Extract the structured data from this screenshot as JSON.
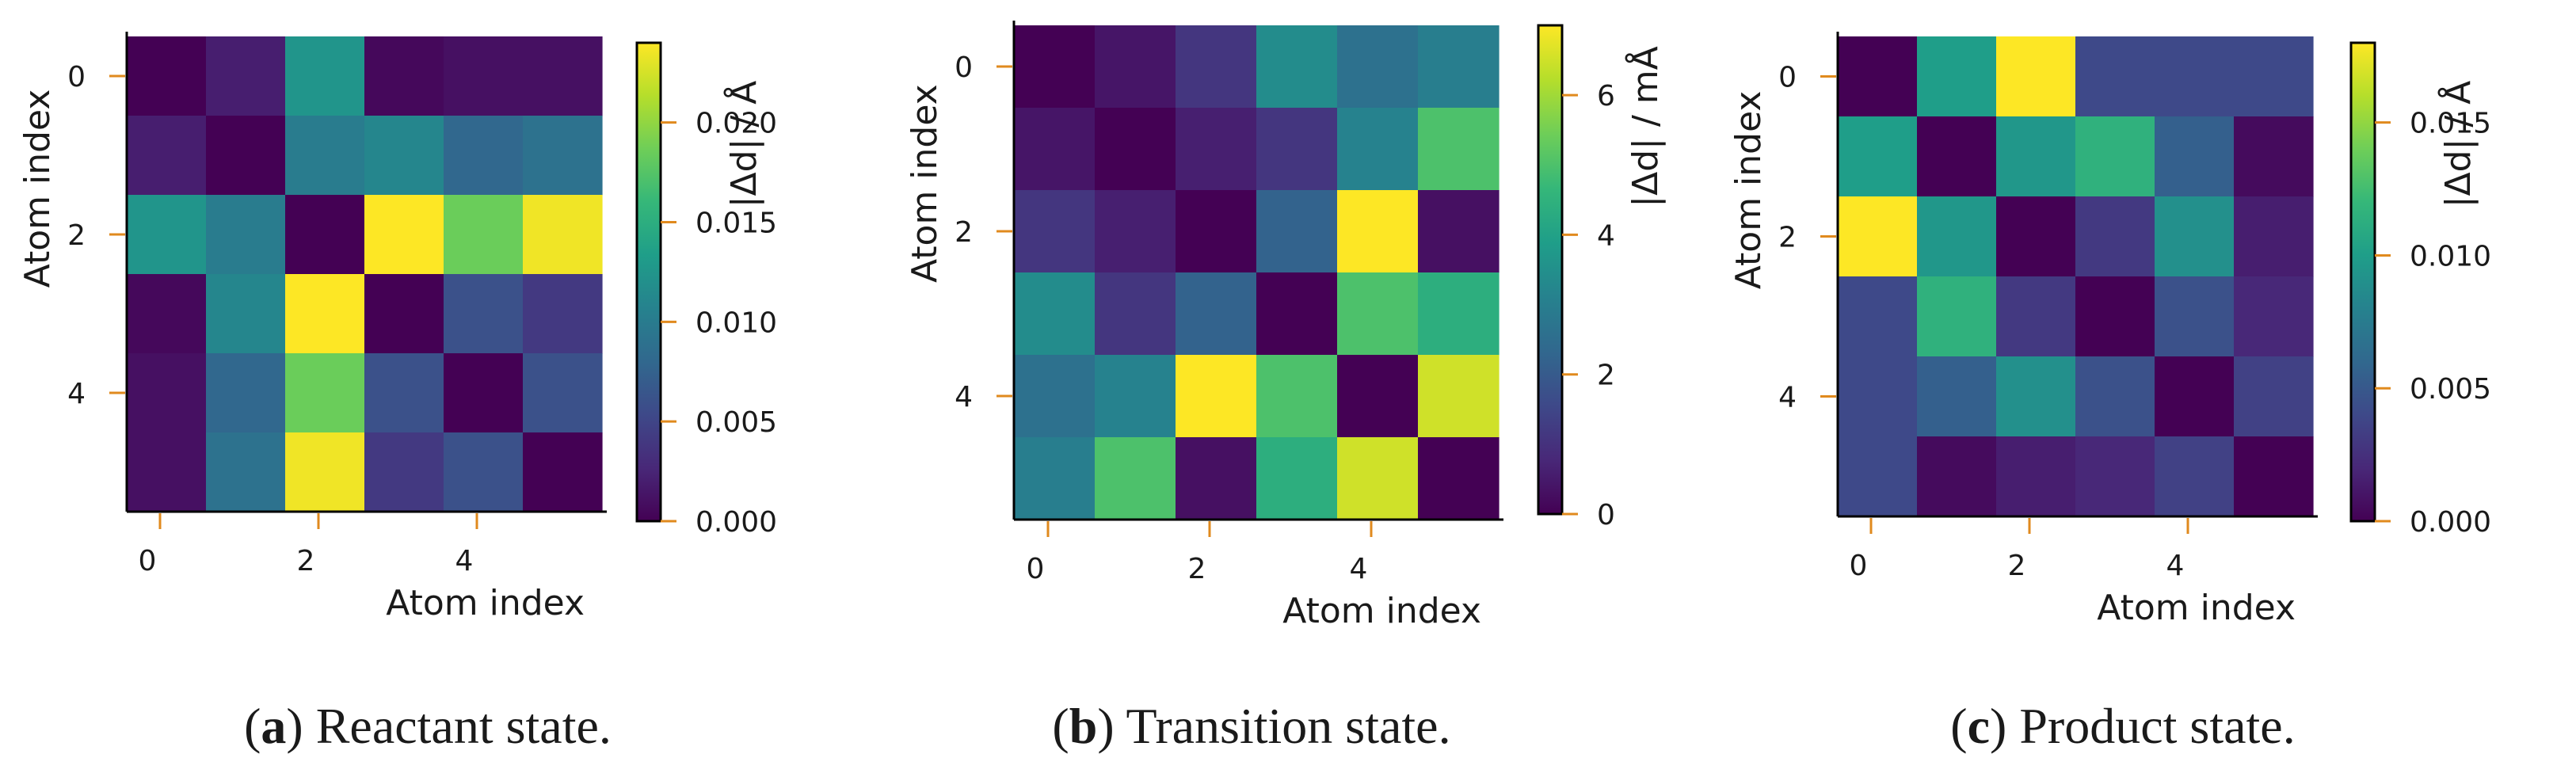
{
  "colors": {
    "tick": "#e08a1e",
    "frame": "#000000",
    "text": "#1a1a1a",
    "viridis": [
      "#440154",
      "#482878",
      "#3e4989",
      "#31688e",
      "#26828e",
      "#1f9e89",
      "#35b779",
      "#6ece58",
      "#b5de2b",
      "#fde725"
    ]
  },
  "chart_data": [
    {
      "type": "heatmap",
      "panel_letter": "a",
      "caption_text": "Reactant state.",
      "xlabel": "Atom index",
      "ylabel": "Atom index",
      "x_ticks": [
        "0",
        "2",
        "4"
      ],
      "y_ticks": [
        "0",
        "2",
        "4"
      ],
      "colorbar_label": "|Δd| / Å",
      "colorbar_range": [
        0,
        0.024
      ],
      "colorbar_ticks": [
        0,
        0.005,
        0.01,
        0.015,
        0.02
      ],
      "colorbar_tick_labels": [
        "0.000",
        "0.005",
        "0.010",
        "0.015",
        "0.020"
      ],
      "matrix": [
        [
          0.0,
          0.002,
          0.0125,
          0.0005,
          0.001,
          0.001
        ],
        [
          0.002,
          0.0,
          0.01,
          0.011,
          0.008,
          0.009
        ],
        [
          0.0125,
          0.01,
          0.0,
          0.024,
          0.0185,
          0.0235
        ],
        [
          0.0005,
          0.011,
          0.024,
          0.0,
          0.006,
          0.004
        ],
        [
          0.001,
          0.008,
          0.0185,
          0.006,
          0.0,
          0.006
        ],
        [
          0.001,
          0.009,
          0.0235,
          0.004,
          0.006,
          0.0
        ]
      ]
    },
    {
      "type": "heatmap",
      "panel_letter": "b",
      "caption_text": "Transition state.",
      "xlabel": "Atom index",
      "ylabel": "Atom index",
      "x_ticks": [
        "0",
        "2",
        "4"
      ],
      "y_ticks": [
        "0",
        "2",
        "4"
      ],
      "colorbar_label": "|Δd| / mÅ",
      "colorbar_range": [
        0,
        7
      ],
      "colorbar_ticks": [
        0,
        2,
        4,
        6
      ],
      "colorbar_tick_labels": [
        "0",
        "2",
        "4",
        "6"
      ],
      "matrix": [
        [
          0.0,
          0.4,
          1.1,
          3.4,
          2.6,
          3.0
        ],
        [
          0.4,
          0.0,
          0.6,
          1.1,
          3.1,
          5.0
        ],
        [
          1.1,
          0.6,
          0.0,
          2.2,
          7.0,
          0.3
        ],
        [
          3.4,
          1.1,
          2.2,
          0.0,
          5.0,
          4.4
        ],
        [
          2.6,
          3.1,
          7.0,
          5.0,
          0.0,
          6.5
        ],
        [
          3.0,
          5.0,
          0.3,
          4.4,
          6.5,
          0.0
        ]
      ]
    },
    {
      "type": "heatmap",
      "panel_letter": "c",
      "caption_text": "Product state.",
      "xlabel": "Atom index",
      "ylabel": "Atom index",
      "x_ticks": [
        "0",
        "2",
        "4"
      ],
      "y_ticks": [
        "0",
        "2",
        "4"
      ],
      "colorbar_label": "|Δd| / Å",
      "colorbar_range": [
        0,
        0.018
      ],
      "colorbar_ticks": [
        0,
        0.005,
        0.01,
        0.015
      ],
      "colorbar_tick_labels": [
        "0.000",
        "0.005",
        "0.010",
        "0.015"
      ],
      "matrix": [
        [
          0.0,
          0.01,
          0.018,
          0.004,
          0.004,
          0.004
        ],
        [
          0.01,
          0.0,
          0.0095,
          0.0115,
          0.0055,
          0.0005
        ],
        [
          0.018,
          0.0095,
          0.0,
          0.003,
          0.009,
          0.0015
        ],
        [
          0.004,
          0.0115,
          0.003,
          0.0,
          0.0045,
          0.002
        ],
        [
          0.004,
          0.0055,
          0.009,
          0.0045,
          0.0,
          0.0035
        ],
        [
          0.004,
          0.0005,
          0.0015,
          0.002,
          0.0035,
          0.0
        ]
      ]
    }
  ]
}
